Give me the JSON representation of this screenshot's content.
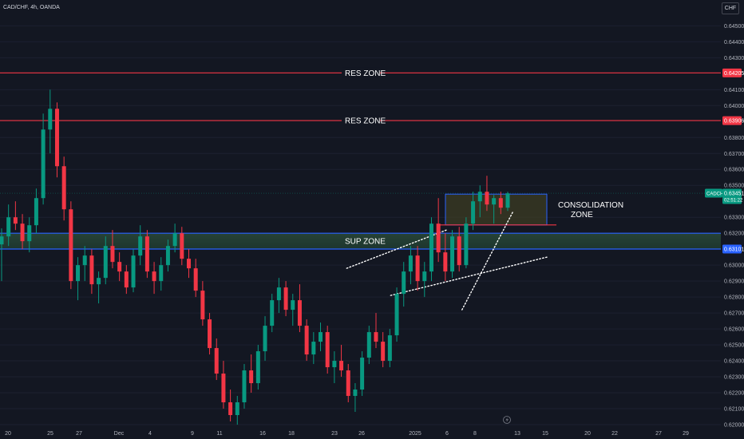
{
  "chart_data": {
    "type": "candlestick",
    "symbol_label": "CAD/CHF, 4h, OANDA",
    "currency": "CHF",
    "y_axis_ticks": [
      "0.64500",
      "0.64400",
      "0.64300",
      "0.64100",
      "0.64000",
      "0.63800",
      "0.63700",
      "0.63600",
      "0.63500",
      "0.63300",
      "0.63200",
      "0.63000",
      "0.62900",
      "0.62800",
      "0.62700",
      "0.62600",
      "0.62500",
      "0.62400",
      "0.62300",
      "0.62200",
      "0.62100",
      "0.62000"
    ],
    "ylim": [
      0.62,
      0.6455
    ],
    "x_axis_ticks": [
      "20",
      "25",
      "27",
      "Dec",
      "4",
      "9",
      "11",
      "16",
      "18",
      "23",
      "26",
      "2025",
      "6",
      "8",
      "13",
      "15",
      "20",
      "22",
      "27",
      "29"
    ],
    "price_tags": [
      {
        "label": "0.64205",
        "value": 0.64205,
        "color": "#f23645"
      },
      {
        "label": "0.63906",
        "value": 0.63906,
        "color": "#f23645"
      },
      {
        "label": "0.63101",
        "value": 0.63101,
        "color": "#2962ff"
      }
    ],
    "current_price": {
      "symbol_tag": "CADCHF",
      "price": "0.63451",
      "countdown": "02:51:22",
      "value": 0.63451
    },
    "zones": [
      {
        "label": "RES ZONE",
        "value": 0.64205,
        "type": "line",
        "color": "#f23645"
      },
      {
        "label": "RES ZONE",
        "value": 0.63906,
        "type": "line",
        "color": "#f23645"
      },
      {
        "label": "SUP ZONE",
        "low": 0.63101,
        "high": 0.632,
        "type": "band",
        "color": "#2962ff"
      }
    ],
    "consolidation": {
      "label_line1": "CONSOLIDATION",
      "label_line2": "ZONE",
      "low": 0.63252,
      "high": 0.63445
    },
    "trendlines": [
      {
        "from": [
          0.621,
          0.6272
        ],
        "to": [
          0.69,
          0.6334
        ]
      },
      {
        "from": [
          0.466,
          0.6298
        ],
        "to": [
          0.6,
          0.6322
        ]
      },
      {
        "from": [
          0.525,
          0.6281
        ],
        "to": [
          0.735,
          0.6305
        ]
      }
    ],
    "ohlc": [
      [
        0.6313,
        0.6323,
        0.629,
        0.6318
      ],
      [
        0.6318,
        0.6338,
        0.6312,
        0.633
      ],
      [
        0.633,
        0.634,
        0.6322,
        0.6326
      ],
      [
        0.6326,
        0.6332,
        0.631,
        0.6315
      ],
      [
        0.6315,
        0.633,
        0.6308,
        0.6325
      ],
      [
        0.6325,
        0.6348,
        0.632,
        0.6342
      ],
      [
        0.6342,
        0.6395,
        0.6338,
        0.6385
      ],
      [
        0.6385,
        0.641,
        0.637,
        0.6398
      ],
      [
        0.6398,
        0.6402,
        0.6355,
        0.6362
      ],
      [
        0.6362,
        0.6368,
        0.6328,
        0.6335
      ],
      [
        0.6335,
        0.634,
        0.6285,
        0.629
      ],
      [
        0.629,
        0.6305,
        0.6278,
        0.63
      ],
      [
        0.63,
        0.6312,
        0.629,
        0.6306
      ],
      [
        0.6306,
        0.631,
        0.6282,
        0.6288
      ],
      [
        0.6288,
        0.6296,
        0.6276,
        0.6292
      ],
      [
        0.6292,
        0.6318,
        0.6288,
        0.6312
      ],
      [
        0.6312,
        0.6322,
        0.6298,
        0.6302
      ],
      [
        0.6302,
        0.6308,
        0.629,
        0.6296
      ],
      [
        0.6296,
        0.63,
        0.6282,
        0.6286
      ],
      [
        0.6286,
        0.631,
        0.6283,
        0.6306
      ],
      [
        0.6306,
        0.6325,
        0.63,
        0.6318
      ],
      [
        0.6318,
        0.6322,
        0.6292,
        0.6296
      ],
      [
        0.6296,
        0.6302,
        0.6282,
        0.629
      ],
      [
        0.629,
        0.6305,
        0.6284,
        0.63
      ],
      [
        0.63,
        0.6316,
        0.6296,
        0.6312
      ],
      [
        0.6312,
        0.6326,
        0.6308,
        0.632
      ],
      [
        0.632,
        0.6324,
        0.63,
        0.6304
      ],
      [
        0.6304,
        0.631,
        0.6292,
        0.6298
      ],
      [
        0.6298,
        0.6304,
        0.628,
        0.6284
      ],
      [
        0.6284,
        0.629,
        0.6262,
        0.6266
      ],
      [
        0.6266,
        0.627,
        0.6244,
        0.6248
      ],
      [
        0.6248,
        0.6254,
        0.6228,
        0.6232
      ],
      [
        0.6232,
        0.624,
        0.621,
        0.6214
      ],
      [
        0.6214,
        0.6222,
        0.6202,
        0.6206
      ],
      [
        0.6206,
        0.6218,
        0.62,
        0.6214
      ],
      [
        0.6214,
        0.6238,
        0.621,
        0.6234
      ],
      [
        0.6234,
        0.6244,
        0.622,
        0.6226
      ],
      [
        0.6226,
        0.625,
        0.6222,
        0.6246
      ],
      [
        0.6246,
        0.6268,
        0.624,
        0.6262
      ],
      [
        0.6262,
        0.6282,
        0.6258,
        0.6278
      ],
      [
        0.6278,
        0.6292,
        0.627,
        0.6286
      ],
      [
        0.6286,
        0.629,
        0.6268,
        0.6272
      ],
      [
        0.6272,
        0.6282,
        0.6262,
        0.6278
      ],
      [
        0.6278,
        0.6288,
        0.6258,
        0.6262
      ],
      [
        0.6262,
        0.6266,
        0.624,
        0.6244
      ],
      [
        0.6244,
        0.6258,
        0.6238,
        0.6252
      ],
      [
        0.6252,
        0.6264,
        0.6246,
        0.6258
      ],
      [
        0.6258,
        0.6262,
        0.6232,
        0.6236
      ],
      [
        0.6236,
        0.6246,
        0.6226,
        0.624
      ],
      [
        0.624,
        0.625,
        0.623,
        0.6234
      ],
      [
        0.6234,
        0.6238,
        0.6214,
        0.6218
      ],
      [
        0.6218,
        0.6226,
        0.6208,
        0.6222
      ],
      [
        0.6222,
        0.6246,
        0.6218,
        0.6242
      ],
      [
        0.6242,
        0.6262,
        0.6238,
        0.6258
      ],
      [
        0.6258,
        0.627,
        0.6248,
        0.6252
      ],
      [
        0.6252,
        0.6258,
        0.6236,
        0.624
      ],
      [
        0.624,
        0.626,
        0.6236,
        0.6256
      ],
      [
        0.6256,
        0.6286,
        0.6252,
        0.6282
      ],
      [
        0.6282,
        0.6302,
        0.6274,
        0.6296
      ],
      [
        0.6296,
        0.6312,
        0.6288,
        0.6306
      ],
      [
        0.6306,
        0.6312,
        0.6284,
        0.629
      ],
      [
        0.629,
        0.6302,
        0.628,
        0.6296
      ],
      [
        0.6296,
        0.633,
        0.629,
        0.6326
      ],
      [
        0.6326,
        0.6342,
        0.6302,
        0.6308
      ],
      [
        0.6308,
        0.632,
        0.629,
        0.6296
      ],
      [
        0.6296,
        0.6322,
        0.6292,
        0.6318
      ],
      [
        0.6318,
        0.6324,
        0.6296,
        0.63
      ],
      [
        0.63,
        0.633,
        0.6298,
        0.6326
      ],
      [
        0.6326,
        0.6346,
        0.6322,
        0.634
      ],
      [
        0.634,
        0.635,
        0.633,
        0.6346
      ],
      [
        0.6346,
        0.6356,
        0.6334,
        0.6338
      ],
      [
        0.6338,
        0.6344,
        0.6326,
        0.6342
      ],
      [
        0.6342,
        0.6346,
        0.6332,
        0.6336
      ],
      [
        0.6336,
        0.6346,
        0.6334,
        0.6345
      ]
    ]
  }
}
